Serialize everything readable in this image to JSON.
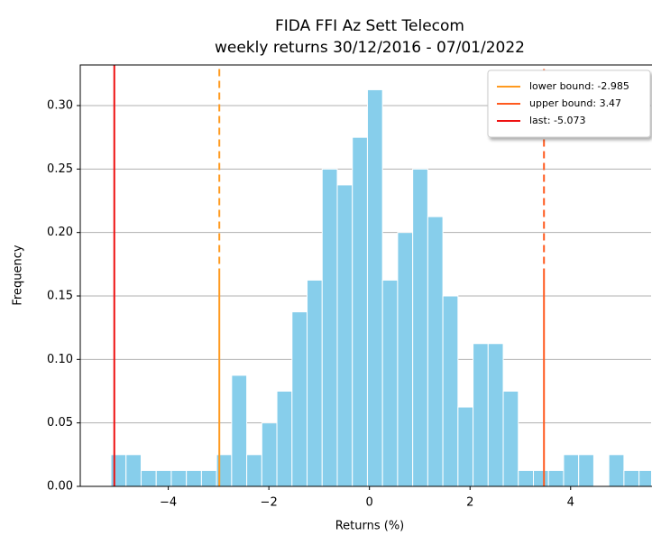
{
  "chart_data": {
    "type": "histogram",
    "title": "FIDA FFI Az Sett Telecom",
    "subtitle": "weekly returns 30/12/2016 - 07/01/2022",
    "x_label": "Returns (%)",
    "y_label": "Frequency",
    "color": "#87ceeb",
    "bins": [
      -5.14,
      -4.84,
      -4.54,
      -4.24,
      -3.94,
      -3.64,
      -3.34,
      -3.04,
      -2.74,
      -2.44,
      -2.14,
      -1.84,
      -1.54,
      -1.24,
      -0.94,
      -0.64,
      -0.34,
      -0.04,
      0.26,
      0.56,
      0.86,
      1.16,
      1.46,
      1.76,
      2.06,
      2.36,
      2.66,
      2.96,
      3.26,
      3.56,
      3.86,
      4.16,
      4.46,
      4.76,
      5.06,
      5.36,
      5.66
    ],
    "values": [
      0.025,
      0.025,
      0.0125,
      0.0125,
      0.0125,
      0.0125,
      0.0125,
      0.025,
      0.0875,
      0.025,
      0.05,
      0.075,
      0.1375,
      0.1625,
      0.25,
      0.2375,
      0.275,
      0.3125,
      0.1625,
      0.2,
      0.25,
      0.2125,
      0.15,
      0.0625,
      0.1125,
      0.1125,
      0.075,
      0.0125,
      0.0125,
      0.0125,
      0.025,
      0.025,
      0,
      0.025,
      0.0125,
      0.0125
    ],
    "xlim": [
      -5.75,
      5.6
    ],
    "ylim": [
      0,
      0.332
    ],
    "xticks": [
      {
        "value": -4,
        "label": "−4"
      },
      {
        "value": -2,
        "label": "−2"
      },
      0,
      2,
      4
    ],
    "yticks": [
      {
        "value": 0,
        "label": "0.00"
      },
      {
        "value": 0.05,
        "label": "0.05"
      },
      {
        "value": 0.1,
        "label": "0.10"
      },
      {
        "value": 0.15,
        "label": "0.15"
      },
      {
        "value": 0.2,
        "label": "0.20"
      },
      {
        "value": 0.25,
        "label": "0.25"
      },
      {
        "value": 0.3,
        "label": "0.30"
      }
    ],
    "grid": true,
    "legend_position": "upper right",
    "vlines": [
      {
        "name": "lower bound: -2.985",
        "value": -2.985,
        "color": "#ff9a1f",
        "style": "dashed"
      },
      {
        "name": "upper bound: 3.47",
        "value": 3.47,
        "color": "#ff5a1f",
        "style": "dashed"
      },
      {
        "name": "last: -5.073",
        "value": -5.073,
        "color": "#ee1111",
        "style": "solid"
      }
    ]
  }
}
